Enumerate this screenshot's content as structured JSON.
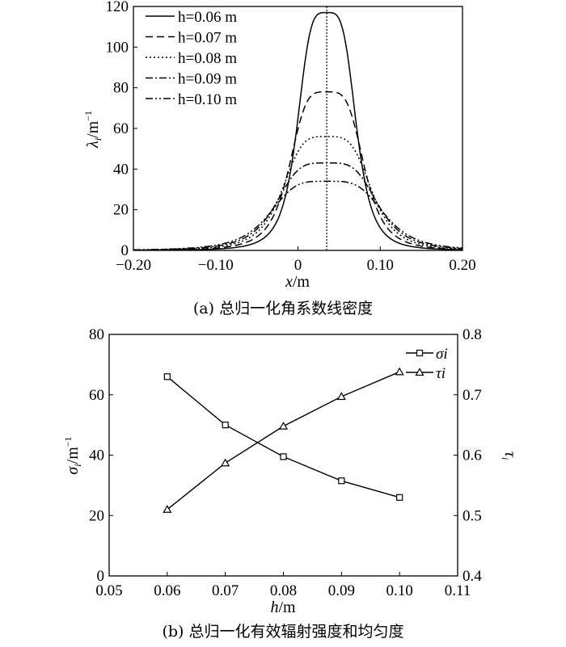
{
  "chart_data": [
    {
      "type": "line",
      "caption": "(a) 总归一化角系数线密度",
      "xlabel": "x/m",
      "ylabel": "λi/m⁻¹",
      "xlim": [
        -0.2,
        0.2
      ],
      "ylim": [
        0,
        120
      ],
      "xticks": [
        "−0.20",
        "−0.10",
        "0",
        "0.10",
        "0.20"
      ],
      "xtick_values": [
        -0.2,
        -0.1,
        0,
        0.1,
        0.2
      ],
      "yticks": [
        "0",
        "20",
        "40",
        "60",
        "80",
        "100",
        "120"
      ],
      "ytick_values": [
        0,
        20,
        40,
        60,
        80,
        100,
        120
      ],
      "legend_position": "top-left",
      "peak_marker_x": 0.035,
      "series": [
        {
          "name": "h=0.06 m",
          "h": "0.06",
          "dash": "solid",
          "peak": 117,
          "w": 0.037
        },
        {
          "name": "h=0.07 m",
          "h": "0.07",
          "dash": "dashed",
          "peak": 78,
          "w": 0.047
        },
        {
          "name": "h=0.08 m",
          "h": "0.08",
          "dash": "dotted",
          "peak": 56,
          "w": 0.056
        },
        {
          "name": "h=0.09 m",
          "h": "0.09",
          "dash": "dashdot",
          "peak": 43,
          "w": 0.064
        },
        {
          "name": "h=0.10 m",
          "h": "0.10",
          "dash": "dashdotdot",
          "peak": 34,
          "w": 0.072
        }
      ]
    },
    {
      "type": "line",
      "caption": "(b) 总归一化有效辐射强度和均匀度",
      "xlabel": "h/m",
      "ylabel_left": "σi/m⁻¹",
      "ylabel_right": "τi",
      "xlim": [
        0.05,
        0.11
      ],
      "ylim_left": [
        0,
        80
      ],
      "ylim_right": [
        0.4,
        0.8
      ],
      "xticks": [
        "0.05",
        "0.06",
        "0.07",
        "0.08",
        "0.09",
        "0.10",
        "0.11"
      ],
      "xtick_values": [
        0.05,
        0.06,
        0.07,
        0.08,
        0.09,
        0.1,
        0.11
      ],
      "yticks_left": [
        "0",
        "20",
        "40",
        "60",
        "80"
      ],
      "ytick_values_left": [
        0,
        20,
        40,
        60,
        80
      ],
      "yticks_right": [
        "0.4",
        "0.5",
        "0.6",
        "0.7",
        "0.8"
      ],
      "ytick_values_right": [
        0.4,
        0.5,
        0.6,
        0.7,
        0.8
      ],
      "legend_position": "top-right",
      "x": [
        0.06,
        0.07,
        0.08,
        0.09,
        0.1
      ],
      "series": [
        {
          "name": "σi",
          "marker": "square",
          "axis": "left",
          "values": [
            66,
            50,
            39.5,
            31.5,
            26
          ]
        },
        {
          "name": "τi",
          "marker": "triangle",
          "axis": "right",
          "values": [
            0.51,
            0.587,
            0.648,
            0.697,
            0.738
          ]
        }
      ]
    }
  ]
}
